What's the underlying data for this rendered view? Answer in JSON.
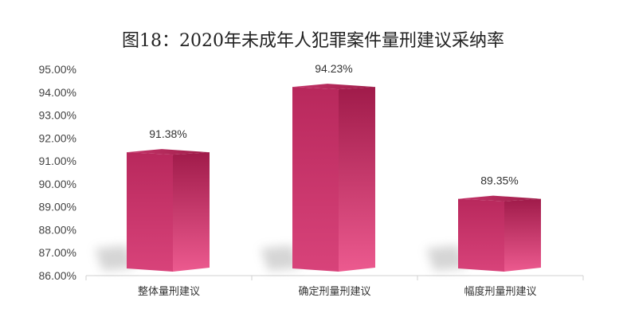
{
  "chart_data": {
    "type": "bar",
    "title": "图18：2020年未成年人犯罪案件量刑建议采纳率",
    "categories": [
      "整体量刑建议",
      "确定刑量刑建议",
      "幅度刑量刑建议"
    ],
    "values": [
      91.38,
      94.23,
      89.35
    ],
    "value_labels": [
      "91.38%",
      "94.23%",
      "89.35%"
    ],
    "ylim": [
      86,
      95
    ],
    "yticks": [
      86,
      87,
      88,
      89,
      90,
      91,
      92,
      93,
      94,
      95
    ],
    "ytick_labels": [
      "86.00%",
      "87.00%",
      "88.00%",
      "89.00%",
      "90.00%",
      "91.00%",
      "92.00%",
      "93.00%",
      "94.00%",
      "95.00%"
    ],
    "xlabel": "",
    "ylabel": "",
    "grid": false,
    "legend": "none",
    "style": "3d-bar",
    "colors": {
      "front_light": "#e8558a",
      "front_dark": "#a81e4f",
      "side": "#b02357",
      "top": "#c93a6b"
    }
  }
}
